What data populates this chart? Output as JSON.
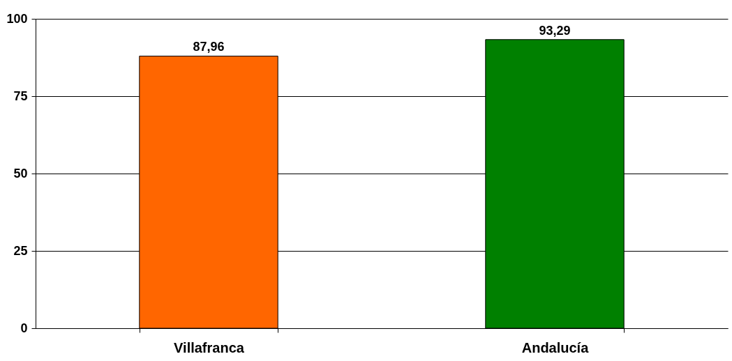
{
  "chart_data": {
    "type": "bar",
    "categories": [
      "Villafranca",
      "Andalucía"
    ],
    "values": [
      87.96,
      93.29
    ],
    "value_labels": [
      "87,96",
      "93,29"
    ],
    "colors": [
      "#ff6600",
      "#008000"
    ],
    "ylim": [
      0,
      100
    ],
    "yticks": [
      0,
      25,
      50,
      75,
      100
    ],
    "grid": "y"
  }
}
